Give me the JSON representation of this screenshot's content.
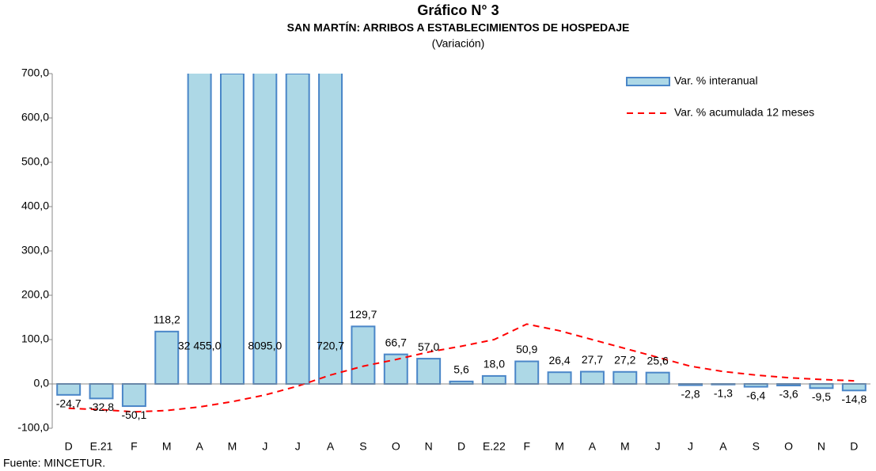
{
  "chart_data": {
    "type": "bar",
    "title": "Gráfico N° 3",
    "subtitle": "SAN MARTÍN: ARRIBOS A ESTABLECIMIENTOS DE HOSPEDAJE",
    "note": "(Variación)",
    "source": "Fuente: MINCETUR.",
    "categories": [
      "D",
      "E.21",
      "F",
      "M",
      "A",
      "M",
      "J",
      "J",
      "A",
      "S",
      "O",
      "N",
      "D",
      "E.22",
      "F",
      "M",
      "A",
      "M",
      "J",
      "J",
      "A",
      "S",
      "O",
      "N",
      "D"
    ],
    "series": [
      {
        "name": "Var. % interanual",
        "type": "bar",
        "color": "#add8e6",
        "edge": "#4a86c8",
        "values": [
          -24.7,
          -32.8,
          -50.1,
          118.2,
          32455.0,
          700,
          8095.0,
          700,
          720.7,
          129.7,
          66.7,
          57.0,
          5.6,
          18.0,
          50.9,
          26.4,
          27.7,
          27.2,
          25.6,
          -2.8,
          -1.3,
          -6.4,
          -3.6,
          -9.5,
          -14.8
        ],
        "value_labels": [
          "-24,7",
          "-32,8",
          "-50,1",
          "118,2",
          "32 455,0",
          null,
          "8095,0",
          null,
          "720,7",
          "129,7",
          "66,7",
          "57,0",
          "5,6",
          "18,0",
          "50,9",
          "26,4",
          "27,7",
          "27,2",
          "25,6",
          "-2,8",
          "-1,3",
          "-6,4",
          "-3,6",
          "-9,5",
          "-14,8"
        ]
      },
      {
        "name": "Var. % acumulada 12 meses",
        "type": "line",
        "color": "#ff0000",
        "values": [
          -55,
          -58,
          -63,
          -60,
          -52,
          -40,
          -25,
          -5,
          20,
          40,
          55,
          72,
          85,
          100,
          135,
          120,
          100,
          80,
          60,
          40,
          28,
          20,
          14,
          10,
          7
        ]
      }
    ],
    "ylim": [
      -100,
      700
    ],
    "yticks": [
      {
        "value": -100,
        "label": "-100,0"
      },
      {
        "value": 0,
        "label": "0,0"
      },
      {
        "value": 100,
        "label": "100,0"
      },
      {
        "value": 200,
        "label": "200,0"
      },
      {
        "value": 300,
        "label": "300,0"
      },
      {
        "value": 400,
        "label": "400,0"
      },
      {
        "value": 500,
        "label": "500,0"
      },
      {
        "value": 600,
        "label": "600,0"
      },
      {
        "value": 700,
        "label": "700,0"
      }
    ],
    "legend": "top-right"
  }
}
